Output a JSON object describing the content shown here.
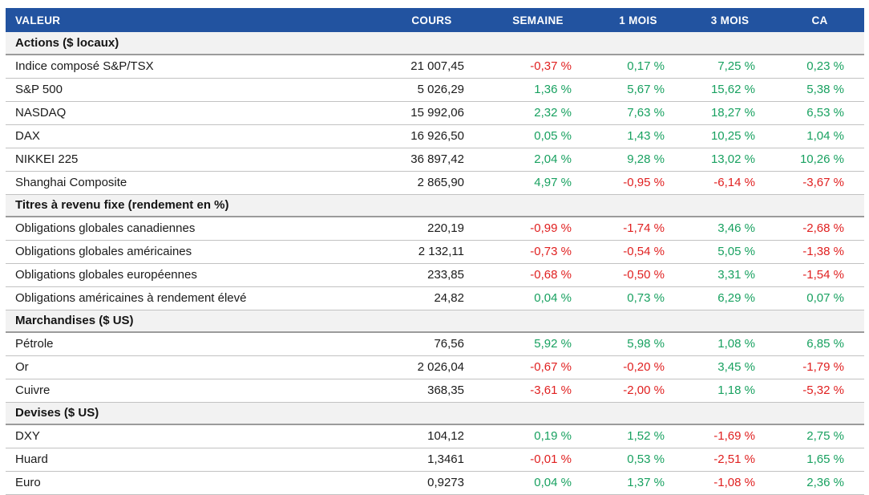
{
  "chart_data": {
    "type": "table",
    "columns": [
      "VALEUR",
      "COURS",
      "SEMAINE",
      "1 MOIS",
      "3 MOIS",
      "CA"
    ],
    "sections": [
      {
        "title": "Actions ($ locaux)",
        "rows": [
          {
            "name": "Indice composé S&P/TSX",
            "cours": "21 007,45",
            "changes": [
              "-0,37 %",
              "0,17 %",
              "7,25 %",
              "0,23 %"
            ]
          },
          {
            "name": "S&P 500",
            "cours": "5 026,29",
            "changes": [
              "1,36 %",
              "5,67 %",
              "15,62 %",
              "5,38 %"
            ]
          },
          {
            "name": "NASDAQ",
            "cours": "15 992,06",
            "changes": [
              "2,32 %",
              "7,63 %",
              "18,27 %",
              "6,53 %"
            ]
          },
          {
            "name": "DAX",
            "cours": "16 926,50",
            "changes": [
              "0,05 %",
              "1,43 %",
              "10,25 %",
              "1,04 %"
            ]
          },
          {
            "name": "NIKKEI 225",
            "cours": "36 897,42",
            "changes": [
              "2,04 %",
              "9,28 %",
              "13,02 %",
              "10,26 %"
            ]
          },
          {
            "name": "Shanghai Composite",
            "cours": "2 865,90",
            "changes": [
              "4,97 %",
              "-0,95 %",
              "-6,14 %",
              "-3,67 %"
            ]
          }
        ]
      },
      {
        "title": "Titres à revenu fixe (rendement en %)",
        "rows": [
          {
            "name": "Obligations globales canadiennes",
            "cours": "220,19",
            "changes": [
              "-0,99 %",
              "-1,74 %",
              "3,46 %",
              "-2,68 %"
            ]
          },
          {
            "name": "Obligations globales américaines",
            "cours": "2 132,11",
            "changes": [
              "-0,73 %",
              "-0,54 %",
              "5,05 %",
              "-1,38 %"
            ]
          },
          {
            "name": "Obligations globales européennes",
            "cours": "233,85",
            "changes": [
              "-0,68 %",
              "-0,50 %",
              "3,31 %",
              "-1,54 %"
            ]
          },
          {
            "name": "Obligations américaines à rendement élevé",
            "cours": "24,82",
            "changes": [
              "0,04 %",
              "0,73 %",
              "6,29 %",
              "0,07 %"
            ]
          }
        ]
      },
      {
        "title": "Marchandises ($ US)",
        "rows": [
          {
            "name": "Pétrole",
            "cours": "76,56",
            "changes": [
              "5,92 %",
              "5,98 %",
              "1,08 %",
              "6,85 %"
            ]
          },
          {
            "name": "Or",
            "cours": "2 026,04",
            "changes": [
              "-0,67 %",
              "-0,20 %",
              "3,45 %",
              "-1,79 %"
            ]
          },
          {
            "name": "Cuivre",
            "cours": "368,35",
            "changes": [
              "-3,61 %",
              "-2,00 %",
              "1,18 %",
              "-5,32 %"
            ]
          }
        ]
      },
      {
        "title": "Devises ($ US)",
        "rows": [
          {
            "name": "DXY",
            "cours": "104,12",
            "changes": [
              "0,19 %",
              "1,52 %",
              "-1,69 %",
              "2,75 %"
            ]
          },
          {
            "name": "Huard",
            "cours": "1,3461",
            "changes": [
              "-0,01 %",
              "0,53 %",
              "-2,51 %",
              "1,65 %"
            ]
          },
          {
            "name": "Euro",
            "cours": "0,9273",
            "changes": [
              "0,04 %",
              "1,37 %",
              "-1,08 %",
              "2,36 %"
            ]
          }
        ]
      }
    ]
  },
  "colors": {
    "header_bg": "#2253a0",
    "header_text": "#ffffff",
    "positive": "#18a160",
    "negative": "#e02020",
    "section_bg": "#f2f2f2",
    "row_border": "#c2c2c2",
    "section_border": "#9b9b9b"
  }
}
